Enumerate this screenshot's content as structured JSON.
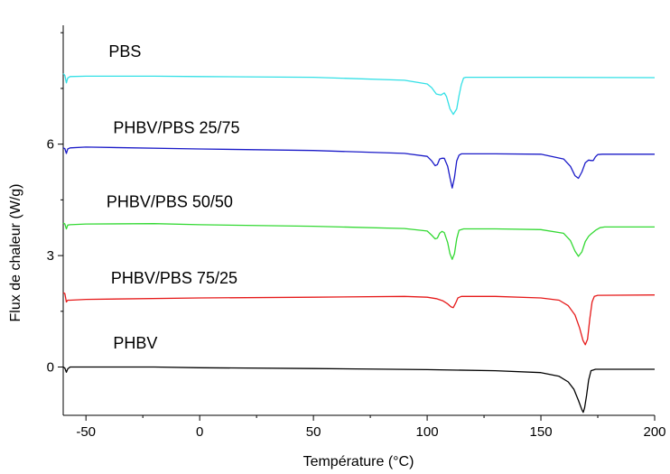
{
  "chart_data": {
    "type": "line",
    "title": "",
    "xlabel": "Température (°C)",
    "ylabel": "Flux de chaleur (W/g)",
    "xlim": [
      -60,
      200
    ],
    "ylim": [
      -1.3,
      9.2
    ],
    "xticks": [
      -50,
      0,
      50,
      100,
      150,
      200
    ],
    "xtick_labels": [
      "-50",
      "0",
      "50",
      "100",
      "150",
      "200"
    ],
    "yticks": [
      0,
      3,
      6
    ],
    "ytick_labels": [
      "0",
      "3",
      "6"
    ],
    "grid": false,
    "legend": "none",
    "series": [
      {
        "name": "PBS",
        "color": "#33e0e6",
        "label_at": [
          -40,
          8.35
        ],
        "points": [
          [
            -60,
            7.9
          ],
          [
            -59.3,
            7.85
          ],
          [
            -58.6,
            7.65
          ],
          [
            -58,
            7.78
          ],
          [
            -57,
            7.82
          ],
          [
            -50,
            7.83
          ],
          [
            -20,
            7.83
          ],
          [
            0,
            7.82
          ],
          [
            50,
            7.8
          ],
          [
            90,
            7.72
          ],
          [
            100,
            7.62
          ],
          [
            102,
            7.52
          ],
          [
            104,
            7.35
          ],
          [
            106,
            7.32
          ],
          [
            107.5,
            7.38
          ],
          [
            108.5,
            7.28
          ],
          [
            110,
            6.95
          ],
          [
            111.5,
            6.8
          ],
          [
            113,
            6.95
          ],
          [
            114,
            7.3
          ],
          [
            115,
            7.6
          ],
          [
            116,
            7.78
          ],
          [
            117,
            7.8
          ],
          [
            130,
            7.8
          ],
          [
            150,
            7.8
          ],
          [
            200,
            7.79
          ]
        ]
      },
      {
        "name": "PHBV/PBS 25/75",
        "color": "#1a1ac8",
        "label_at": [
          -38,
          6.3
        ],
        "points": [
          [
            -60,
            5.9
          ],
          [
            -59.3,
            5.88
          ],
          [
            -58.6,
            5.75
          ],
          [
            -58,
            5.87
          ],
          [
            -57,
            5.9
          ],
          [
            -50,
            5.92
          ],
          [
            0,
            5.87
          ],
          [
            50,
            5.83
          ],
          [
            90,
            5.75
          ],
          [
            100,
            5.67
          ],
          [
            102,
            5.55
          ],
          [
            103.5,
            5.42
          ],
          [
            104.5,
            5.45
          ],
          [
            105.5,
            5.6
          ],
          [
            106.5,
            5.62
          ],
          [
            107.5,
            5.62
          ],
          [
            109,
            5.4
          ],
          [
            110,
            5.1
          ],
          [
            111,
            4.82
          ],
          [
            112,
            5.1
          ],
          [
            113,
            5.55
          ],
          [
            114,
            5.7
          ],
          [
            115,
            5.74
          ],
          [
            130,
            5.74
          ],
          [
            150,
            5.73
          ],
          [
            160,
            5.6
          ],
          [
            163,
            5.4
          ],
          [
            165,
            5.15
          ],
          [
            166.5,
            5.08
          ],
          [
            168,
            5.25
          ],
          [
            169.5,
            5.5
          ],
          [
            171,
            5.57
          ],
          [
            172,
            5.56
          ],
          [
            173,
            5.56
          ],
          [
            174,
            5.66
          ],
          [
            175,
            5.72
          ],
          [
            177,
            5.73
          ],
          [
            200,
            5.73
          ]
        ]
      },
      {
        "name": "PHBV/PBS 50/50",
        "color": "#33d933",
        "label_at": [
          -41,
          4.3
        ],
        "points": [
          [
            -60,
            3.88
          ],
          [
            -59.3,
            3.85
          ],
          [
            -58.6,
            3.72
          ],
          [
            -58,
            3.82
          ],
          [
            -57,
            3.83
          ],
          [
            -50,
            3.85
          ],
          [
            -20,
            3.86
          ],
          [
            0,
            3.83
          ],
          [
            50,
            3.79
          ],
          [
            90,
            3.73
          ],
          [
            100,
            3.66
          ],
          [
            102,
            3.55
          ],
          [
            103.5,
            3.45
          ],
          [
            104.5,
            3.47
          ],
          [
            105.5,
            3.6
          ],
          [
            106.5,
            3.65
          ],
          [
            107.5,
            3.62
          ],
          [
            109,
            3.35
          ],
          [
            110,
            3.05
          ],
          [
            111,
            2.9
          ],
          [
            112,
            3.05
          ],
          [
            113,
            3.45
          ],
          [
            114,
            3.68
          ],
          [
            116,
            3.72
          ],
          [
            130,
            3.72
          ],
          [
            150,
            3.7
          ],
          [
            160,
            3.6
          ],
          [
            163,
            3.4
          ],
          [
            165,
            3.12
          ],
          [
            166.5,
            2.98
          ],
          [
            168,
            3.1
          ],
          [
            169.5,
            3.38
          ],
          [
            171,
            3.52
          ],
          [
            172,
            3.58
          ],
          [
            174,
            3.68
          ],
          [
            176,
            3.75
          ],
          [
            178,
            3.77
          ],
          [
            200,
            3.77
          ]
        ]
      },
      {
        "name": "PHBV/PBS 75/25",
        "color": "#e61a1a",
        "label_at": [
          -39,
          2.25
        ],
        "points": [
          [
            -60,
            2.0
          ],
          [
            -59.3,
            1.98
          ],
          [
            -58.6,
            1.75
          ],
          [
            -58,
            1.8
          ],
          [
            -57,
            1.8
          ],
          [
            -50,
            1.82
          ],
          [
            0,
            1.86
          ],
          [
            50,
            1.88
          ],
          [
            90,
            1.9
          ],
          [
            100,
            1.88
          ],
          [
            104,
            1.84
          ],
          [
            107,
            1.78
          ],
          [
            109,
            1.7
          ],
          [
            110.5,
            1.62
          ],
          [
            111.5,
            1.6
          ],
          [
            112.5,
            1.72
          ],
          [
            113.5,
            1.86
          ],
          [
            115,
            1.9
          ],
          [
            130,
            1.9
          ],
          [
            150,
            1.86
          ],
          [
            158,
            1.8
          ],
          [
            162,
            1.65
          ],
          [
            165,
            1.4
          ],
          [
            167,
            1.05
          ],
          [
            168.5,
            0.72
          ],
          [
            169.5,
            0.6
          ],
          [
            170.5,
            0.75
          ],
          [
            171.5,
            1.3
          ],
          [
            172.5,
            1.75
          ],
          [
            173.5,
            1.9
          ],
          [
            175,
            1.93
          ],
          [
            200,
            1.94
          ]
        ]
      },
      {
        "name": "PHBV",
        "color": "#000000",
        "label_at": [
          -38,
          0.5
        ],
        "points": [
          [
            -60,
            0.0
          ],
          [
            -59.3,
            -0.03
          ],
          [
            -58.6,
            -0.14
          ],
          [
            -58,
            -0.05
          ],
          [
            -57,
            0.0
          ],
          [
            -50,
            0.0
          ],
          [
            -20,
            0.0
          ],
          [
            0,
            -0.02
          ],
          [
            50,
            -0.04
          ],
          [
            100,
            -0.07
          ],
          [
            130,
            -0.1
          ],
          [
            150,
            -0.15
          ],
          [
            158,
            -0.25
          ],
          [
            162,
            -0.4
          ],
          [
            164.5,
            -0.6
          ],
          [
            166.5,
            -0.9
          ],
          [
            168,
            -1.15
          ],
          [
            168.6,
            -1.22
          ],
          [
            169.2,
            -1.1
          ],
          [
            170,
            -0.8
          ],
          [
            171,
            -0.35
          ],
          [
            172,
            -0.1
          ],
          [
            174,
            -0.06
          ],
          [
            200,
            -0.06
          ]
        ]
      }
    ]
  }
}
